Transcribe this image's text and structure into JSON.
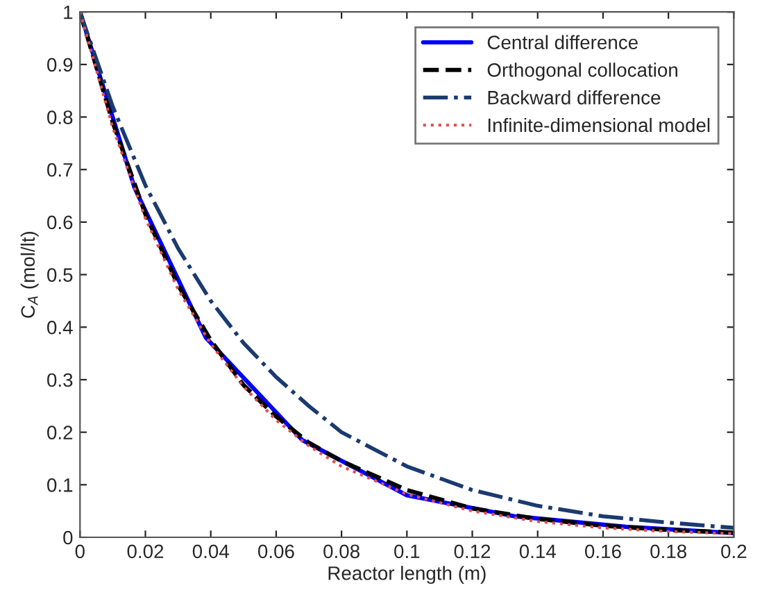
{
  "chart_data": {
    "type": "line",
    "xlabel": "Reactor length (m)",
    "ylabel": "C$_{A}$ (mol/lt)",
    "xlim": [
      0,
      0.2
    ],
    "ylim": [
      0,
      1
    ],
    "xticks": [
      0,
      0.02,
      0.04,
      0.06,
      0.08,
      0.1,
      0.12,
      0.14,
      0.16,
      0.18,
      0.2
    ],
    "yticks": [
      0,
      0.1,
      0.2,
      0.3,
      0.4,
      0.5,
      0.6,
      0.7,
      0.8,
      0.9,
      1
    ],
    "grid": false,
    "legend": "top right",
    "marker": "none",
    "series": [
      {
        "name": "Central difference",
        "color": "#0000ff",
        "line_style": "solid",
        "x": [
          0,
          0.0167,
          0.0385,
          0.068,
          0.1,
          0.133,
          0.167,
          0.2
        ],
        "values": [
          1,
          0.665,
          0.38,
          0.185,
          0.08,
          0.04,
          0.02,
          0.008
        ]
      },
      {
        "name": "Orthogonal collocation",
        "color": "#000000",
        "line_style": "dashed",
        "x": [
          0,
          0.01,
          0.02,
          0.03,
          0.04,
          0.05,
          0.06,
          0.07,
          0.08,
          0.1,
          0.12,
          0.14,
          0.16,
          0.18,
          0.2
        ],
        "values": [
          1,
          0.79,
          0.615,
          0.48,
          0.375,
          0.29,
          0.23,
          0.18,
          0.145,
          0.09,
          0.055,
          0.035,
          0.022,
          0.014,
          0.009
        ]
      },
      {
        "name": "Backward difference",
        "color": "#1a3a70",
        "line_style": "dashdot",
        "x": [
          0,
          0.01,
          0.02,
          0.03,
          0.04,
          0.05,
          0.06,
          0.07,
          0.08,
          0.1,
          0.12,
          0.14,
          0.16,
          0.18,
          0.2
        ],
        "values": [
          1,
          0.82,
          0.67,
          0.55,
          0.45,
          0.37,
          0.305,
          0.25,
          0.2,
          0.135,
          0.09,
          0.06,
          0.04,
          0.028,
          0.018
        ]
      },
      {
        "name": "Infinite-dimensional model",
        "color": "#e05050",
        "line_style": "dotted",
        "x": [
          0,
          0.01,
          0.02,
          0.03,
          0.04,
          0.05,
          0.06,
          0.07,
          0.08,
          0.1,
          0.12,
          0.14,
          0.16,
          0.18,
          0.2
        ],
        "values": [
          1,
          0.78,
          0.607,
          0.472,
          0.368,
          0.287,
          0.223,
          0.174,
          0.135,
          0.082,
          0.05,
          0.03,
          0.018,
          0.011,
          0.007
        ]
      }
    ]
  }
}
